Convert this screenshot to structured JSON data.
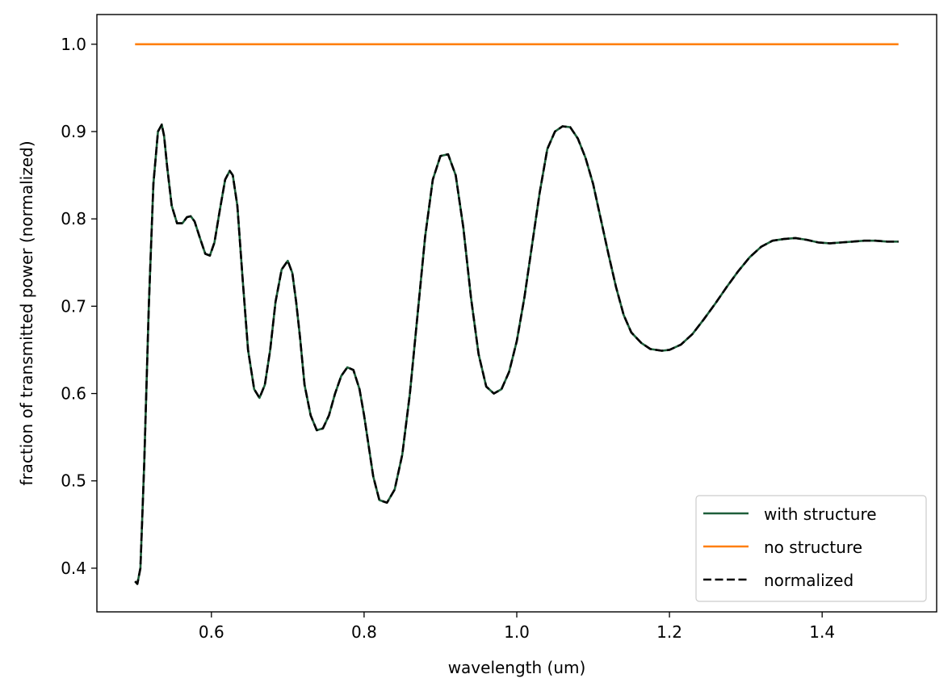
{
  "chart_data": {
    "type": "line",
    "title": "",
    "xlabel": "wavelength (um)",
    "ylabel": "fraction of transmitted power (normalized)",
    "xlim": [
      0.45,
      1.55
    ],
    "ylim": [
      0.35,
      1.034
    ],
    "xticks": [
      0.6,
      0.8,
      1.0,
      1.2,
      1.4
    ],
    "xtick_labels": [
      "0.6",
      "0.8",
      "1.0",
      "1.2",
      "1.4"
    ],
    "yticks": [
      0.4,
      0.5,
      0.6,
      0.7,
      0.8,
      0.9,
      1.0
    ],
    "ytick_labels": [
      "0.4",
      "0.5",
      "0.6",
      "0.7",
      "0.8",
      "0.9",
      "1.0"
    ],
    "grid": false,
    "legend_position": "lower-right",
    "series": [
      {
        "name": "with structure",
        "color": "#1e5e3a",
        "dash": "solid",
        "x": [
          0.5,
          0.503,
          0.507,
          0.512,
          0.518,
          0.524,
          0.53,
          0.535,
          0.538,
          0.542,
          0.548,
          0.555,
          0.562,
          0.568,
          0.573,
          0.578,
          0.585,
          0.592,
          0.598,
          0.604,
          0.611,
          0.618,
          0.624,
          0.628,
          0.634,
          0.641,
          0.648,
          0.656,
          0.663,
          0.67,
          0.677,
          0.684,
          0.692,
          0.7,
          0.706,
          0.711,
          0.716,
          0.722,
          0.73,
          0.738,
          0.746,
          0.754,
          0.762,
          0.77,
          0.778,
          0.786,
          0.794,
          0.8,
          0.806,
          0.812,
          0.82,
          0.83,
          0.84,
          0.85,
          0.86,
          0.87,
          0.88,
          0.89,
          0.9,
          0.91,
          0.92,
          0.93,
          0.94,
          0.95,
          0.96,
          0.97,
          0.98,
          0.99,
          1.0,
          1.01,
          1.02,
          1.03,
          1.04,
          1.05,
          1.06,
          1.07,
          1.08,
          1.09,
          1.1,
          1.11,
          1.12,
          1.13,
          1.14,
          1.15,
          1.163,
          1.175,
          1.19,
          1.2,
          1.215,
          1.23,
          1.245,
          1.26,
          1.275,
          1.29,
          1.305,
          1.32,
          1.335,
          1.35,
          1.365,
          1.38,
          1.395,
          1.41,
          1.425,
          1.44,
          1.455,
          1.47,
          1.485,
          1.5
        ],
        "values": [
          0.385,
          0.382,
          0.4,
          0.52,
          0.7,
          0.84,
          0.9,
          0.908,
          0.895,
          0.86,
          0.815,
          0.795,
          0.795,
          0.802,
          0.803,
          0.797,
          0.778,
          0.76,
          0.758,
          0.773,
          0.81,
          0.845,
          0.855,
          0.85,
          0.815,
          0.73,
          0.65,
          0.605,
          0.595,
          0.61,
          0.65,
          0.705,
          0.742,
          0.752,
          0.738,
          0.705,
          0.665,
          0.61,
          0.575,
          0.558,
          0.56,
          0.575,
          0.6,
          0.62,
          0.63,
          0.627,
          0.605,
          0.575,
          0.54,
          0.505,
          0.478,
          0.475,
          0.49,
          0.53,
          0.6,
          0.69,
          0.78,
          0.845,
          0.872,
          0.874,
          0.85,
          0.79,
          0.71,
          0.645,
          0.608,
          0.6,
          0.605,
          0.625,
          0.66,
          0.71,
          0.77,
          0.83,
          0.88,
          0.9,
          0.906,
          0.905,
          0.892,
          0.87,
          0.84,
          0.8,
          0.76,
          0.722,
          0.69,
          0.67,
          0.658,
          0.651,
          0.649,
          0.65,
          0.656,
          0.668,
          0.685,
          0.703,
          0.722,
          0.74,
          0.756,
          0.768,
          0.775,
          0.777,
          0.778,
          0.776,
          0.773,
          0.772,
          0.773,
          0.774,
          0.775,
          0.775,
          0.774,
          0.774
        ]
      },
      {
        "name": "no structure",
        "color": "#ff7f0e",
        "dash": "solid",
        "x": [
          0.5,
          1.5
        ],
        "values": [
          1.0,
          1.0
        ]
      },
      {
        "name": "normalized",
        "color": "#000000",
        "dash": "dashed",
        "x": [
          0.5,
          0.503,
          0.507,
          0.512,
          0.518,
          0.524,
          0.53,
          0.535,
          0.538,
          0.542,
          0.548,
          0.555,
          0.562,
          0.568,
          0.573,
          0.578,
          0.585,
          0.592,
          0.598,
          0.604,
          0.611,
          0.618,
          0.624,
          0.628,
          0.634,
          0.641,
          0.648,
          0.656,
          0.663,
          0.67,
          0.677,
          0.684,
          0.692,
          0.7,
          0.706,
          0.711,
          0.716,
          0.722,
          0.73,
          0.738,
          0.746,
          0.754,
          0.762,
          0.77,
          0.778,
          0.786,
          0.794,
          0.8,
          0.806,
          0.812,
          0.82,
          0.83,
          0.84,
          0.85,
          0.86,
          0.87,
          0.88,
          0.89,
          0.9,
          0.91,
          0.92,
          0.93,
          0.94,
          0.95,
          0.96,
          0.97,
          0.98,
          0.99,
          1.0,
          1.01,
          1.02,
          1.03,
          1.04,
          1.05,
          1.06,
          1.07,
          1.08,
          1.09,
          1.1,
          1.11,
          1.12,
          1.13,
          1.14,
          1.15,
          1.163,
          1.175,
          1.19,
          1.2,
          1.215,
          1.23,
          1.245,
          1.26,
          1.275,
          1.29,
          1.305,
          1.32,
          1.335,
          1.35,
          1.365,
          1.38,
          1.395,
          1.41,
          1.425,
          1.44,
          1.455,
          1.47,
          1.485,
          1.5
        ],
        "values": [
          0.385,
          0.382,
          0.4,
          0.52,
          0.7,
          0.84,
          0.9,
          0.908,
          0.895,
          0.86,
          0.815,
          0.795,
          0.795,
          0.802,
          0.803,
          0.797,
          0.778,
          0.76,
          0.758,
          0.773,
          0.81,
          0.845,
          0.855,
          0.85,
          0.815,
          0.73,
          0.65,
          0.605,
          0.595,
          0.61,
          0.65,
          0.705,
          0.742,
          0.752,
          0.738,
          0.705,
          0.665,
          0.61,
          0.575,
          0.558,
          0.56,
          0.575,
          0.6,
          0.62,
          0.63,
          0.627,
          0.605,
          0.575,
          0.54,
          0.505,
          0.478,
          0.475,
          0.49,
          0.53,
          0.6,
          0.69,
          0.78,
          0.845,
          0.872,
          0.874,
          0.85,
          0.79,
          0.71,
          0.645,
          0.608,
          0.6,
          0.605,
          0.625,
          0.66,
          0.71,
          0.77,
          0.83,
          0.88,
          0.9,
          0.906,
          0.905,
          0.892,
          0.87,
          0.84,
          0.8,
          0.76,
          0.722,
          0.69,
          0.67,
          0.658,
          0.651,
          0.649,
          0.65,
          0.656,
          0.668,
          0.685,
          0.703,
          0.722,
          0.74,
          0.756,
          0.768,
          0.775,
          0.777,
          0.778,
          0.776,
          0.773,
          0.772,
          0.773,
          0.774,
          0.775,
          0.775,
          0.774,
          0.774
        ]
      }
    ]
  }
}
